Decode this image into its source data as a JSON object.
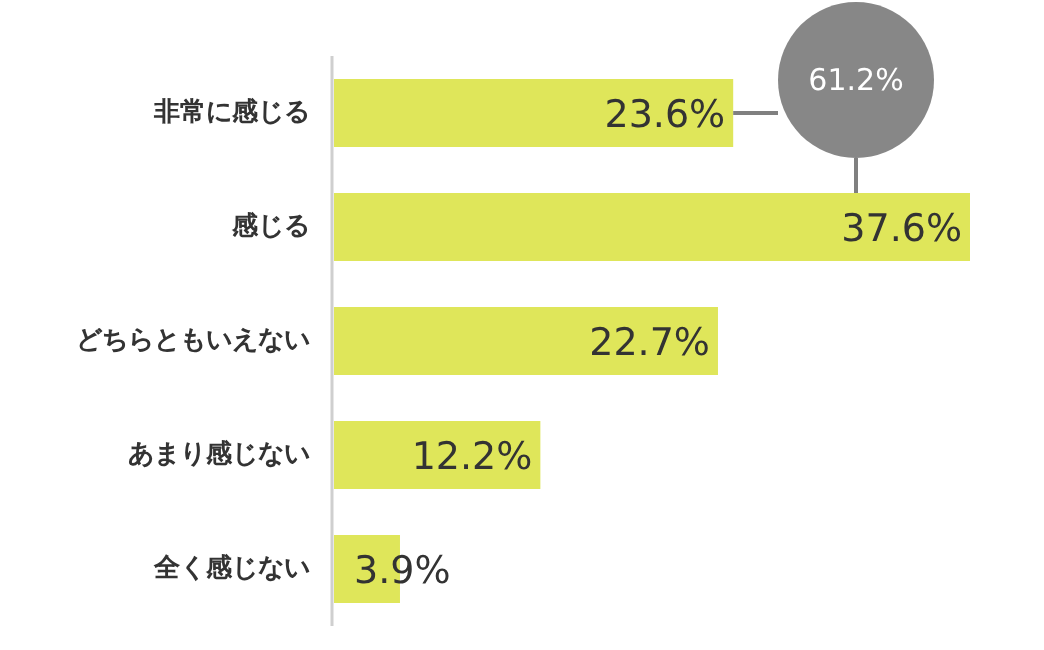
{
  "chart_data": {
    "type": "bar",
    "orientation": "horizontal",
    "categories": [
      "非常に感じる",
      "感じる",
      "どちらともいえない",
      "あまり感じない",
      "全く感じない"
    ],
    "values": [
      23.6,
      37.6,
      22.7,
      12.2,
      3.9
    ],
    "value_labels": [
      "23.6%",
      "37.6%",
      "22.7%",
      "12.2%",
      "3.9%"
    ],
    "color": "#dfe65a",
    "annotations": [
      "61.2%"
    ]
  }
}
